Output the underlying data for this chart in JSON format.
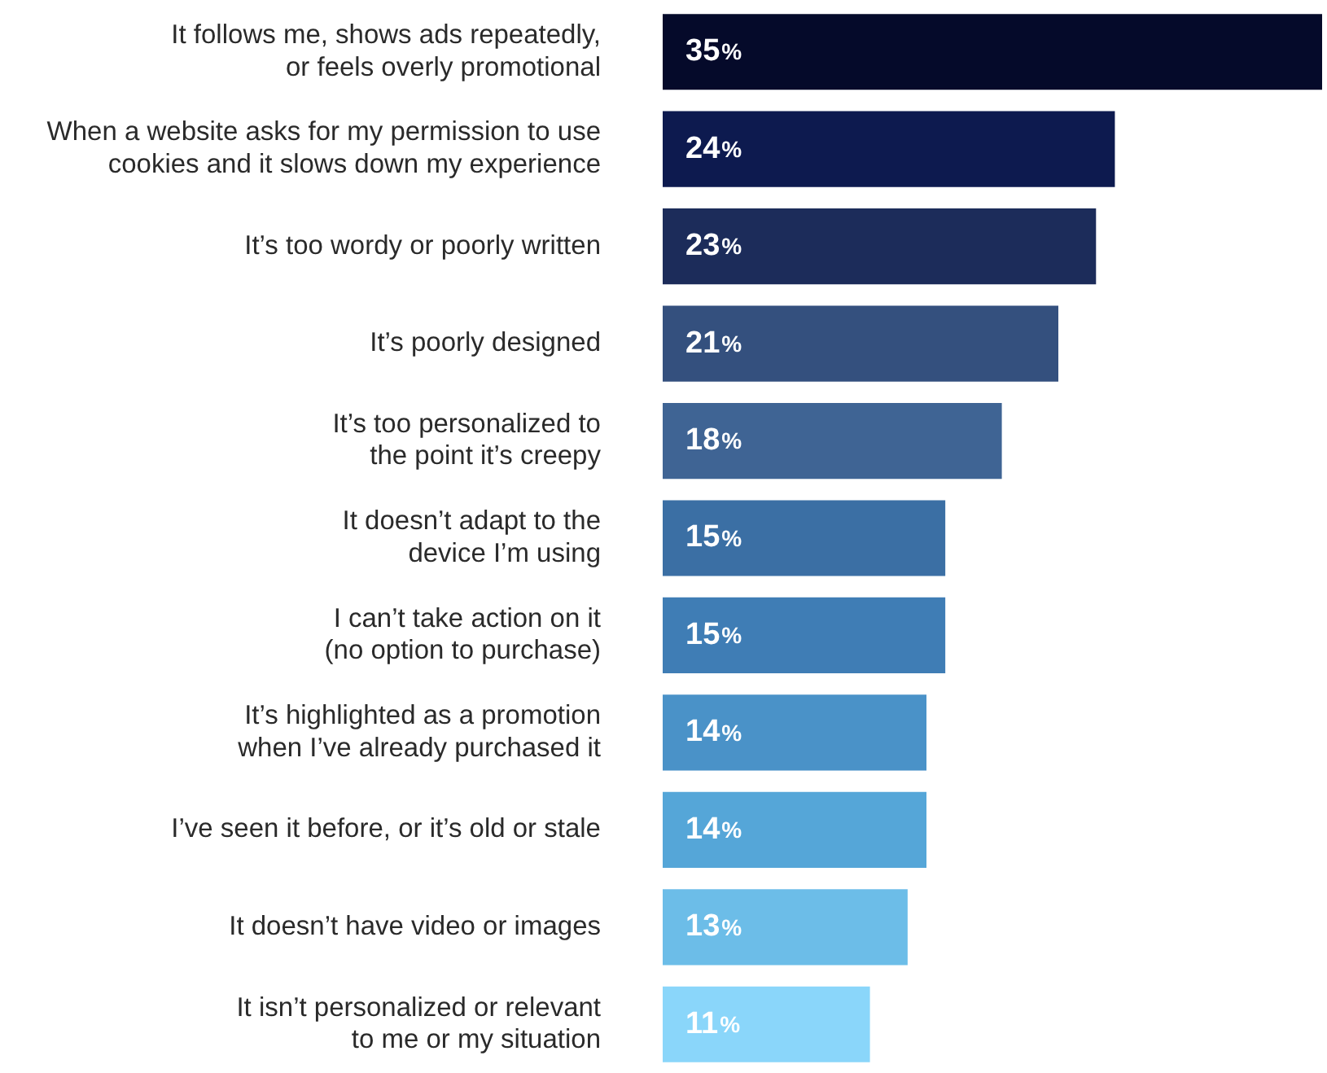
{
  "chart_data": {
    "type": "bar",
    "orientation": "horizontal",
    "categories": [
      "It follows me, shows ads repeatedly,\nor feels overly promotional",
      "When a website asks for my permission to use\ncookies and it slows down my experience",
      "It’s too wordy or poorly written",
      "It’s poorly designed",
      "It’s too personalized to\nthe point it’s creepy",
      "It doesn’t adapt to the\ndevice I’m using",
      "I can’t take action on it\n(no option to purchase)",
      "It’s highlighted as a promotion\nwhen I’ve already purchased it",
      "I’ve seen it before, or it’s old or stale",
      "It doesn’t have video or images",
      "It isn’t personalized or relevant\nto me or my situation"
    ],
    "values": [
      35,
      24,
      23,
      21,
      18,
      15,
      15,
      14,
      14,
      13,
      11
    ],
    "colors": [
      "#050a2a",
      "#0d1a4f",
      "#1c2c5a",
      "#34507e",
      "#3f6494",
      "#3b6fa4",
      "#3f7db5",
      "#4a92c8",
      "#55a6d8",
      "#6cbde8",
      "#8ad6fa"
    ],
    "value_labels": [
      "35%",
      "24%",
      "23%",
      "21%",
      "18%",
      "15%",
      "15%",
      "14%",
      "14%",
      "13%",
      "11%"
    ]
  }
}
